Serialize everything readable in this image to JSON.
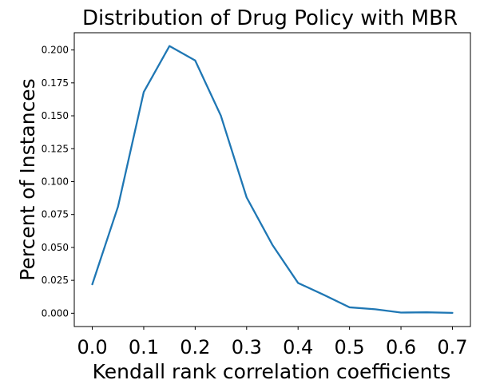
{
  "chart_data": {
    "type": "line",
    "title": "Distribution of Drug Policy with MBR",
    "xlabel": "Kendall rank correlation coefficients",
    "ylabel": "Percent of Instances",
    "x": [
      0.0,
      0.05,
      0.1,
      0.15,
      0.2,
      0.25,
      0.3,
      0.35,
      0.4,
      0.45,
      0.5,
      0.55,
      0.6,
      0.65,
      0.7
    ],
    "series": [
      {
        "name": "",
        "values": [
          0.022,
          0.081,
          0.168,
          0.203,
          0.192,
          0.15,
          0.088,
          0.052,
          0.023,
          0.014,
          0.0045,
          0.003,
          0.0005,
          0.0007,
          0.0003
        ],
        "color": "#1f77b4"
      }
    ],
    "xticks": [
      "0.0",
      "0.1",
      "0.2",
      "0.3",
      "0.4",
      "0.5",
      "0.6",
      "0.7"
    ],
    "yticks": [
      "0.000",
      "0.025",
      "0.050",
      "0.075",
      "0.100",
      "0.125",
      "0.150",
      "0.175",
      "0.200"
    ],
    "xlim": [
      -0.035,
      0.735
    ],
    "ylim": [
      -0.0101,
      0.2131
    ],
    "grid": false
  }
}
